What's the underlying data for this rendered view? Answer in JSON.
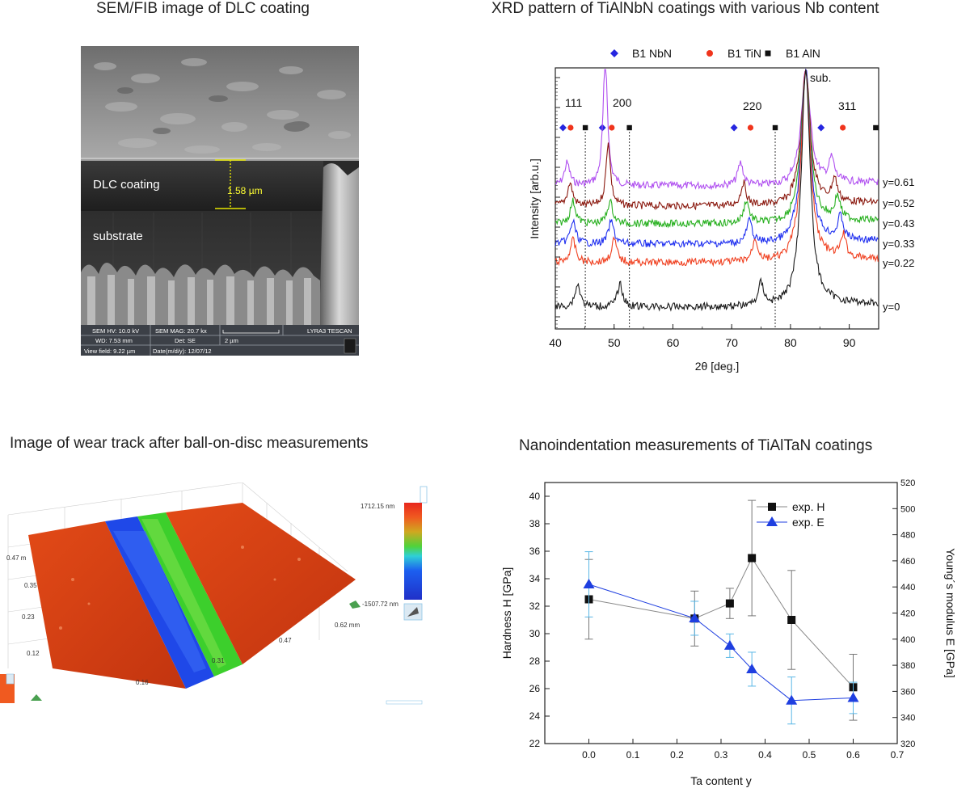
{
  "panels": {
    "sem": {
      "title": "SEM/FIB image of DLC coating",
      "labels": {
        "coating": "DLC coating",
        "substrate": "substrate",
        "thickness": "1.58 µm"
      },
      "info": {
        "hv": "SEM HV: 10.0 kV",
        "mag": "SEM MAG: 20.7 kx",
        "brand": "LYRA3 TESCAN",
        "wd": "WD: 7.53 mm",
        "det": "Det: SE",
        "scale": "2 µm",
        "view": "View field: 9.22 µm",
        "date": "Date(m/d/y): 12/07/12"
      }
    },
    "xrd": {
      "title": "XRD pattern of TiAlNbN coatings with various Nb content",
      "legend": [
        "B1 NbN",
        "B1 TiN",
        "B1 AlN"
      ],
      "peak_labels": [
        "111",
        "200",
        "220",
        "311",
        "sub."
      ],
      "curve_labels": [
        "y=0.61",
        "y=0.52",
        "y=0.43",
        "y=0.33",
        "y=0.22",
        "y=0"
      ],
      "ylabel": "Intensity [arb.u.]",
      "xlabel": "2θ [deg.]",
      "xticks": [
        "40",
        "50",
        "60",
        "70",
        "80",
        "90"
      ]
    },
    "wear": {
      "title": "Image of wear track after ball-on-disc measurements",
      "scale_max": "1712.15 nm",
      "scale_min": "-1507.72 nm",
      "axis_labels": [
        "0.47 m",
        "0.35",
        "0.23",
        "0.12",
        "0.16",
        "0.31",
        "0.47",
        "0.62 mm"
      ]
    },
    "nano": {
      "title": "Nanoindentation measurements of TiAlTaN coatings"
    }
  },
  "chart_data": [
    {
      "type": "line",
      "title": "XRD pattern of TiAlNbN coatings with various Nb content",
      "xlabel": "2θ [deg.]",
      "ylabel": "Intensity [arb.u.]",
      "xlim": [
        40,
        95
      ],
      "yscale": "log",
      "series": [
        {
          "name": "y=0",
          "peaks_2theta": [
            43.8,
            51,
            75,
            82.6
          ]
        },
        {
          "name": "y=0.22",
          "peaks_2theta": [
            43,
            50,
            74,
            82.6,
            89
          ]
        },
        {
          "name": "y=0.33",
          "peaks_2theta": [
            43,
            49.5,
            73,
            82.6,
            88.5
          ]
        },
        {
          "name": "y=0.43",
          "peaks_2theta": [
            43,
            49.3,
            72.5,
            82.6,
            88
          ]
        },
        {
          "name": "y=0.52",
          "peaks_2theta": [
            42.5,
            49,
            72,
            82.6,
            87.5
          ]
        },
        {
          "name": "y=0.61",
          "peaks_2theta": [
            42,
            48.5,
            71.5,
            82.6,
            87
          ]
        }
      ],
      "reference_markers": {
        "B1 NbN": [
          41.3,
          48.0,
          70.4,
          85.2
        ],
        "B1 TiN": [
          42.6,
          49.6,
          73.2,
          88.9
        ],
        "B1 AlN": [
          45.1,
          52.6,
          77.4,
          94.5
        ]
      },
      "legend_position": "top"
    },
    {
      "type": "scatter",
      "title": "Nanoindentation measurements of TiAlTaN coatings",
      "xlabel": "Ta content y",
      "ylabel": "Hardness H [GPa]",
      "y2label": "Young´s modulus E [GPa]",
      "xlim": [
        -0.1,
        0.7
      ],
      "ylim": [
        22,
        41
      ],
      "y2lim": [
        320,
        520
      ],
      "xticks": [
        "0.0",
        "0.1",
        "0.2",
        "0.3",
        "0.4",
        "0.5",
        "0.6",
        "0.7"
      ],
      "yticks": [
        "22",
        "24",
        "26",
        "28",
        "30",
        "32",
        "34",
        "36",
        "38",
        "40"
      ],
      "y2ticks": [
        "320",
        "340",
        "360",
        "380",
        "400",
        "420",
        "440",
        "460",
        "480",
        "500",
        "520"
      ],
      "legend_position": "top-right",
      "series": [
        {
          "name": "exp. H",
          "axis": "left",
          "color": "#111111",
          "marker": "square",
          "x": [
            0.0,
            0.24,
            0.32,
            0.37,
            0.46,
            0.6
          ],
          "y": [
            32.5,
            31.1,
            32.2,
            35.5,
            31.0,
            26.1
          ],
          "err": [
            2.9,
            2.0,
            1.1,
            4.2,
            3.6,
            2.4
          ]
        },
        {
          "name": "exp. E",
          "axis": "right",
          "color": "#1f3fe0",
          "marker": "triangle",
          "x": [
            0.0,
            0.24,
            0.32,
            0.37,
            0.46,
            0.6
          ],
          "y": [
            442,
            416,
            395,
            377,
            353,
            355
          ],
          "err": [
            25,
            13,
            9,
            13,
            18,
            12
          ]
        }
      ]
    }
  ]
}
